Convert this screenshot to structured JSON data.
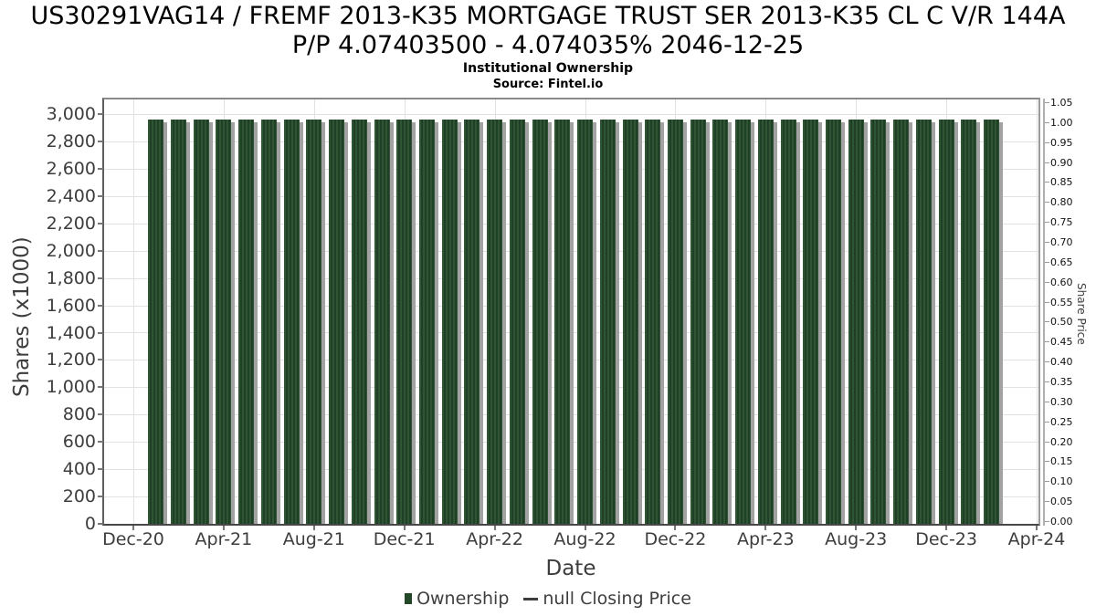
{
  "chart_data": {
    "type": "bar",
    "title_line1": "US30291VAG14 / FREMF 2013-K35 MORTGAGE TRUST SER 2013-K35 CL C V/R 144A",
    "title_line2": "P/P 4.07403500 - 4.074035% 2046-12-25",
    "subtitle": "Institutional Ownership",
    "source": "Source: Fintel.io",
    "xlabel": "Date",
    "ylabel_left": "Shares (x1000)",
    "ylabel_right": "Share Price",
    "x_tick_labels": [
      "Dec-20",
      "Apr-21",
      "Aug-21",
      "Dec-21",
      "Apr-22",
      "Aug-22",
      "Dec-22",
      "Apr-23",
      "Aug-23",
      "Dec-23",
      "Apr-24"
    ],
    "left_axis": {
      "tick_min": 0,
      "tick_max": 3000,
      "tick_step": 200,
      "top_value": 3107,
      "tick_format": "thousands-comma"
    },
    "right_axis": {
      "tick_min": 0,
      "tick_max": 1.05,
      "tick_step": 0.05,
      "tick_format": "2dp"
    },
    "grid": true,
    "legend_position": "bottom",
    "categories": [
      "Jan-21",
      "Feb-21",
      "Mar-21",
      "Apr-21",
      "May-21",
      "Jun-21",
      "Jul-21",
      "Aug-21",
      "Sep-21",
      "Oct-21",
      "Nov-21",
      "Dec-21",
      "Jan-22",
      "Feb-22",
      "Mar-22",
      "Apr-22",
      "May-22",
      "Jun-22",
      "Jul-22",
      "Aug-22",
      "Sep-22",
      "Oct-22",
      "Nov-22",
      "Dec-22",
      "Jan-23",
      "Feb-23",
      "Mar-23",
      "Apr-23",
      "May-23",
      "Jun-23",
      "Jul-23",
      "Aug-23",
      "Sep-23",
      "Oct-23",
      "Nov-23",
      "Dec-23",
      "Jan-24",
      "Feb-24"
    ],
    "series": [
      {
        "name": "Ownership",
        "type": "bar",
        "color": "#24472a",
        "values": [
          2960,
          2960,
          2960,
          2960,
          2960,
          2960,
          2960,
          2960,
          2960,
          2960,
          2960,
          2960,
          2960,
          2960,
          2960,
          2960,
          2960,
          2960,
          2960,
          2960,
          2960,
          2960,
          2960,
          2960,
          2960,
          2960,
          2960,
          2960,
          2960,
          2960,
          2960,
          2960,
          2960,
          2960,
          2960,
          2960,
          2960,
          2960
        ]
      },
      {
        "name": "null Closing Price",
        "type": "line",
        "color": "#3d3d3d",
        "values": []
      }
    ],
    "legend": [
      {
        "label": "Ownership",
        "marker": "square",
        "color": "#24472a"
      },
      {
        "label": "null Closing Price",
        "marker": "line",
        "color": "#3d3d3d"
      }
    ]
  },
  "colors": {
    "bar_stripe_light": "#2f5535",
    "bar_stripe_dark": "#1f4026",
    "bar_shadow": "#a2a2a2",
    "grid_line": "#e2e2e2",
    "axis_border": "#8b8b8b",
    "text_primary": "#000000",
    "text_secondary": "#3d3d3d"
  }
}
